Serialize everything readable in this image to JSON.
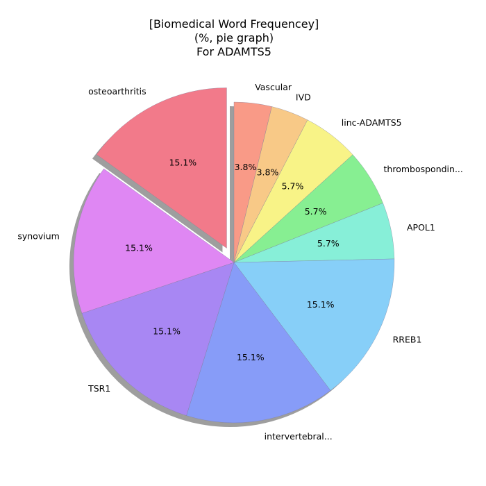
{
  "chart_data": {
    "type": "pie",
    "title_lines": [
      "[Biomedical Word Frequencey]",
      "(%, pie graph)",
      "For ADAMTS5"
    ],
    "start_angle_deg": 90,
    "direction": "clockwise",
    "shadow": true,
    "slices": [
      {
        "label": "Vascular",
        "value": 3.8,
        "pct_label": "3.8%",
        "color": "#f99a87",
        "exploded": false
      },
      {
        "label": "IVD",
        "value": 3.8,
        "pct_label": "3.8%",
        "color": "#f8c987",
        "exploded": false
      },
      {
        "label": "linc-ADAMTS5",
        "value": 5.7,
        "pct_label": "5.7%",
        "color": "#f8f387",
        "exploded": false
      },
      {
        "label": "thrombospondin...",
        "value": 5.7,
        "pct_label": "5.7%",
        "color": "#87ef92",
        "exploded": false
      },
      {
        "label": "APOL1",
        "value": 5.7,
        "pct_label": "5.7%",
        "color": "#87efd8",
        "exploded": false
      },
      {
        "label": "RREB1",
        "value": 15.1,
        "pct_label": "15.1%",
        "color": "#87cff8",
        "exploded": false
      },
      {
        "label": "intervertebral...",
        "value": 15.1,
        "pct_label": "15.1%",
        "color": "#879cf8",
        "exploded": false
      },
      {
        "label": "TSR1",
        "value": 15.1,
        "pct_label": "15.1%",
        "color": "#a887f3",
        "exploded": false
      },
      {
        "label": "synovium",
        "value": 15.1,
        "pct_label": "15.1%",
        "color": "#df87f3",
        "exploded": false
      },
      {
        "label": "osteoarthritis",
        "value": 15.1,
        "pct_label": "15.1%",
        "color": "#f27a8a",
        "exploded": true
      }
    ]
  }
}
